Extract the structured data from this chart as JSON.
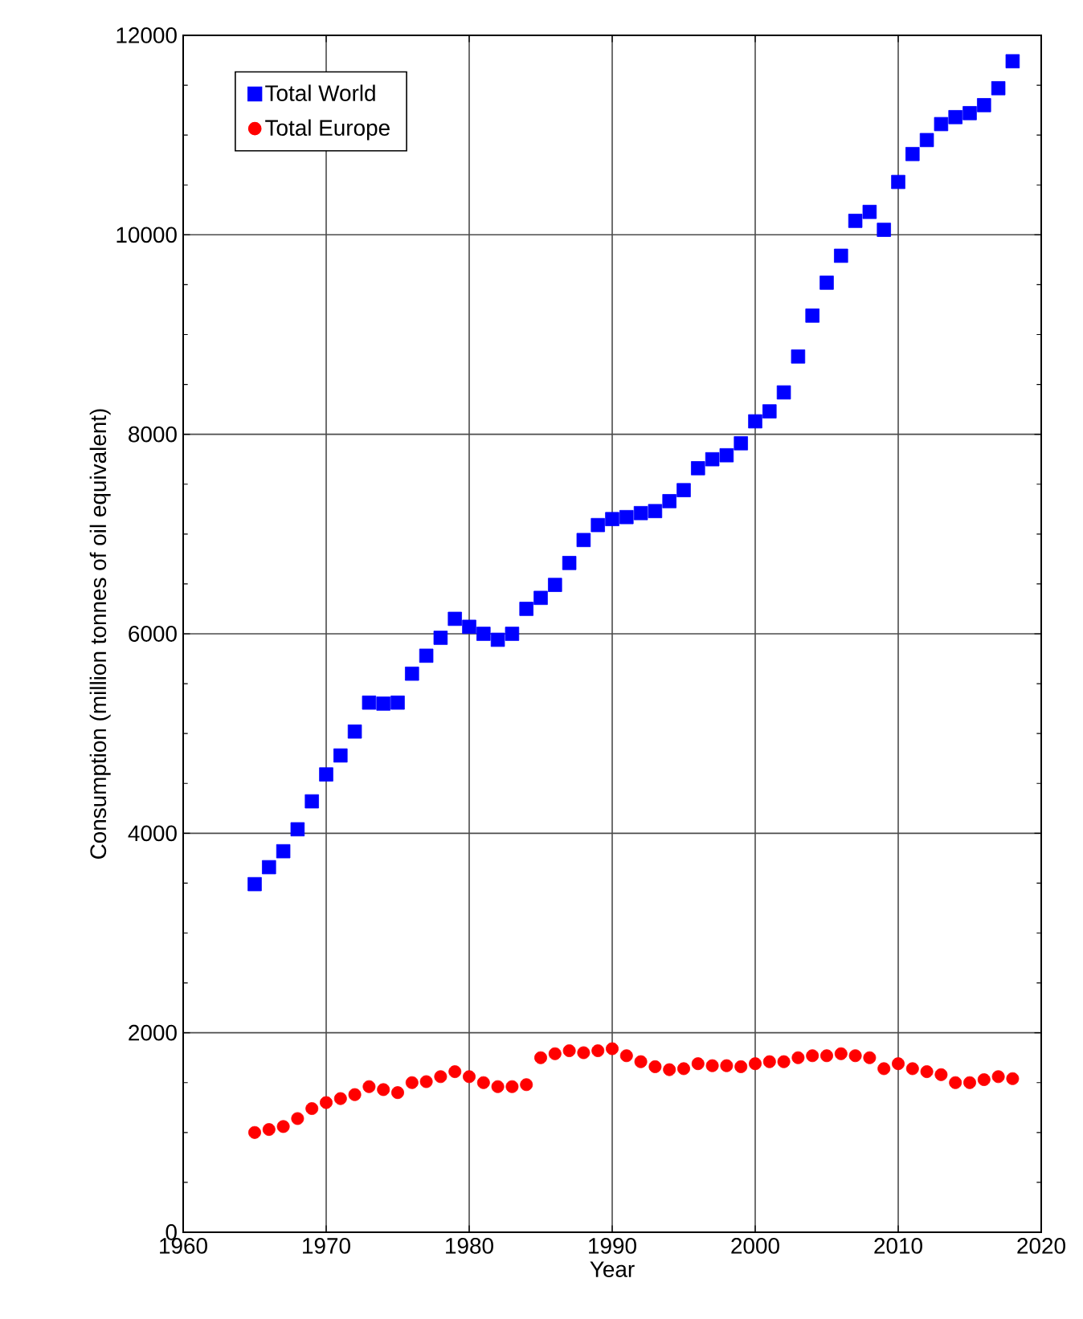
{
  "chart_data": {
    "type": "scatter",
    "xlabel": "Year",
    "ylabel": "Consumption (million tonnes of oil equivalent)",
    "x": [
      1965,
      1966,
      1967,
      1968,
      1969,
      1970,
      1971,
      1972,
      1973,
      1974,
      1975,
      1976,
      1977,
      1978,
      1979,
      1980,
      1981,
      1982,
      1983,
      1984,
      1985,
      1986,
      1987,
      1988,
      1989,
      1990,
      1991,
      1992,
      1993,
      1994,
      1995,
      1996,
      1997,
      1998,
      1999,
      2000,
      2001,
      2002,
      2003,
      2004,
      2005,
      2006,
      2007,
      2008,
      2009,
      2010,
      2011,
      2012,
      2013,
      2014,
      2015,
      2016,
      2017,
      2018
    ],
    "series": [
      {
        "name": "Total World",
        "color": "#0000ff",
        "marker": "square",
        "values": [
          3490,
          3660,
          3820,
          4040,
          4320,
          4590,
          4780,
          5020,
          5310,
          5300,
          5310,
          5600,
          5780,
          5960,
          6150,
          6070,
          6000,
          5940,
          6000,
          6250,
          6360,
          6490,
          6710,
          6940,
          7090,
          7150,
          7170,
          7210,
          7230,
          7330,
          7440,
          7660,
          7750,
          7790,
          7910,
          8130,
          8230,
          8420,
          8780,
          9190,
          9520,
          9790,
          10140,
          10230,
          10050,
          10530,
          10810,
          10950,
          11110,
          11180,
          11220,
          11300,
          11470,
          11740
        ]
      },
      {
        "name": "Total Europe",
        "color": "#ff0000",
        "marker": "circle",
        "values": [
          1000,
          1030,
          1060,
          1140,
          1240,
          1300,
          1340,
          1380,
          1460,
          1430,
          1400,
          1500,
          1510,
          1560,
          1610,
          1560,
          1500,
          1460,
          1460,
          1480,
          1750,
          1790,
          1820,
          1800,
          1820,
          1840,
          1770,
          1710,
          1660,
          1630,
          1640,
          1690,
          1670,
          1670,
          1660,
          1690,
          1710,
          1710,
          1750,
          1770,
          1770,
          1790,
          1770,
          1750,
          1640,
          1690,
          1640,
          1610,
          1580,
          1500,
          1500,
          1530,
          1560,
          1540
        ]
      }
    ],
    "xlim": [
      1960,
      2020
    ],
    "xticks": [
      1960,
      1970,
      1980,
      1990,
      2000,
      2010,
      2020
    ],
    "ylim": [
      0,
      12000
    ],
    "yticks": [
      0,
      2000,
      4000,
      6000,
      8000,
      10000,
      12000
    ],
    "grid": true,
    "legend": "top left"
  }
}
